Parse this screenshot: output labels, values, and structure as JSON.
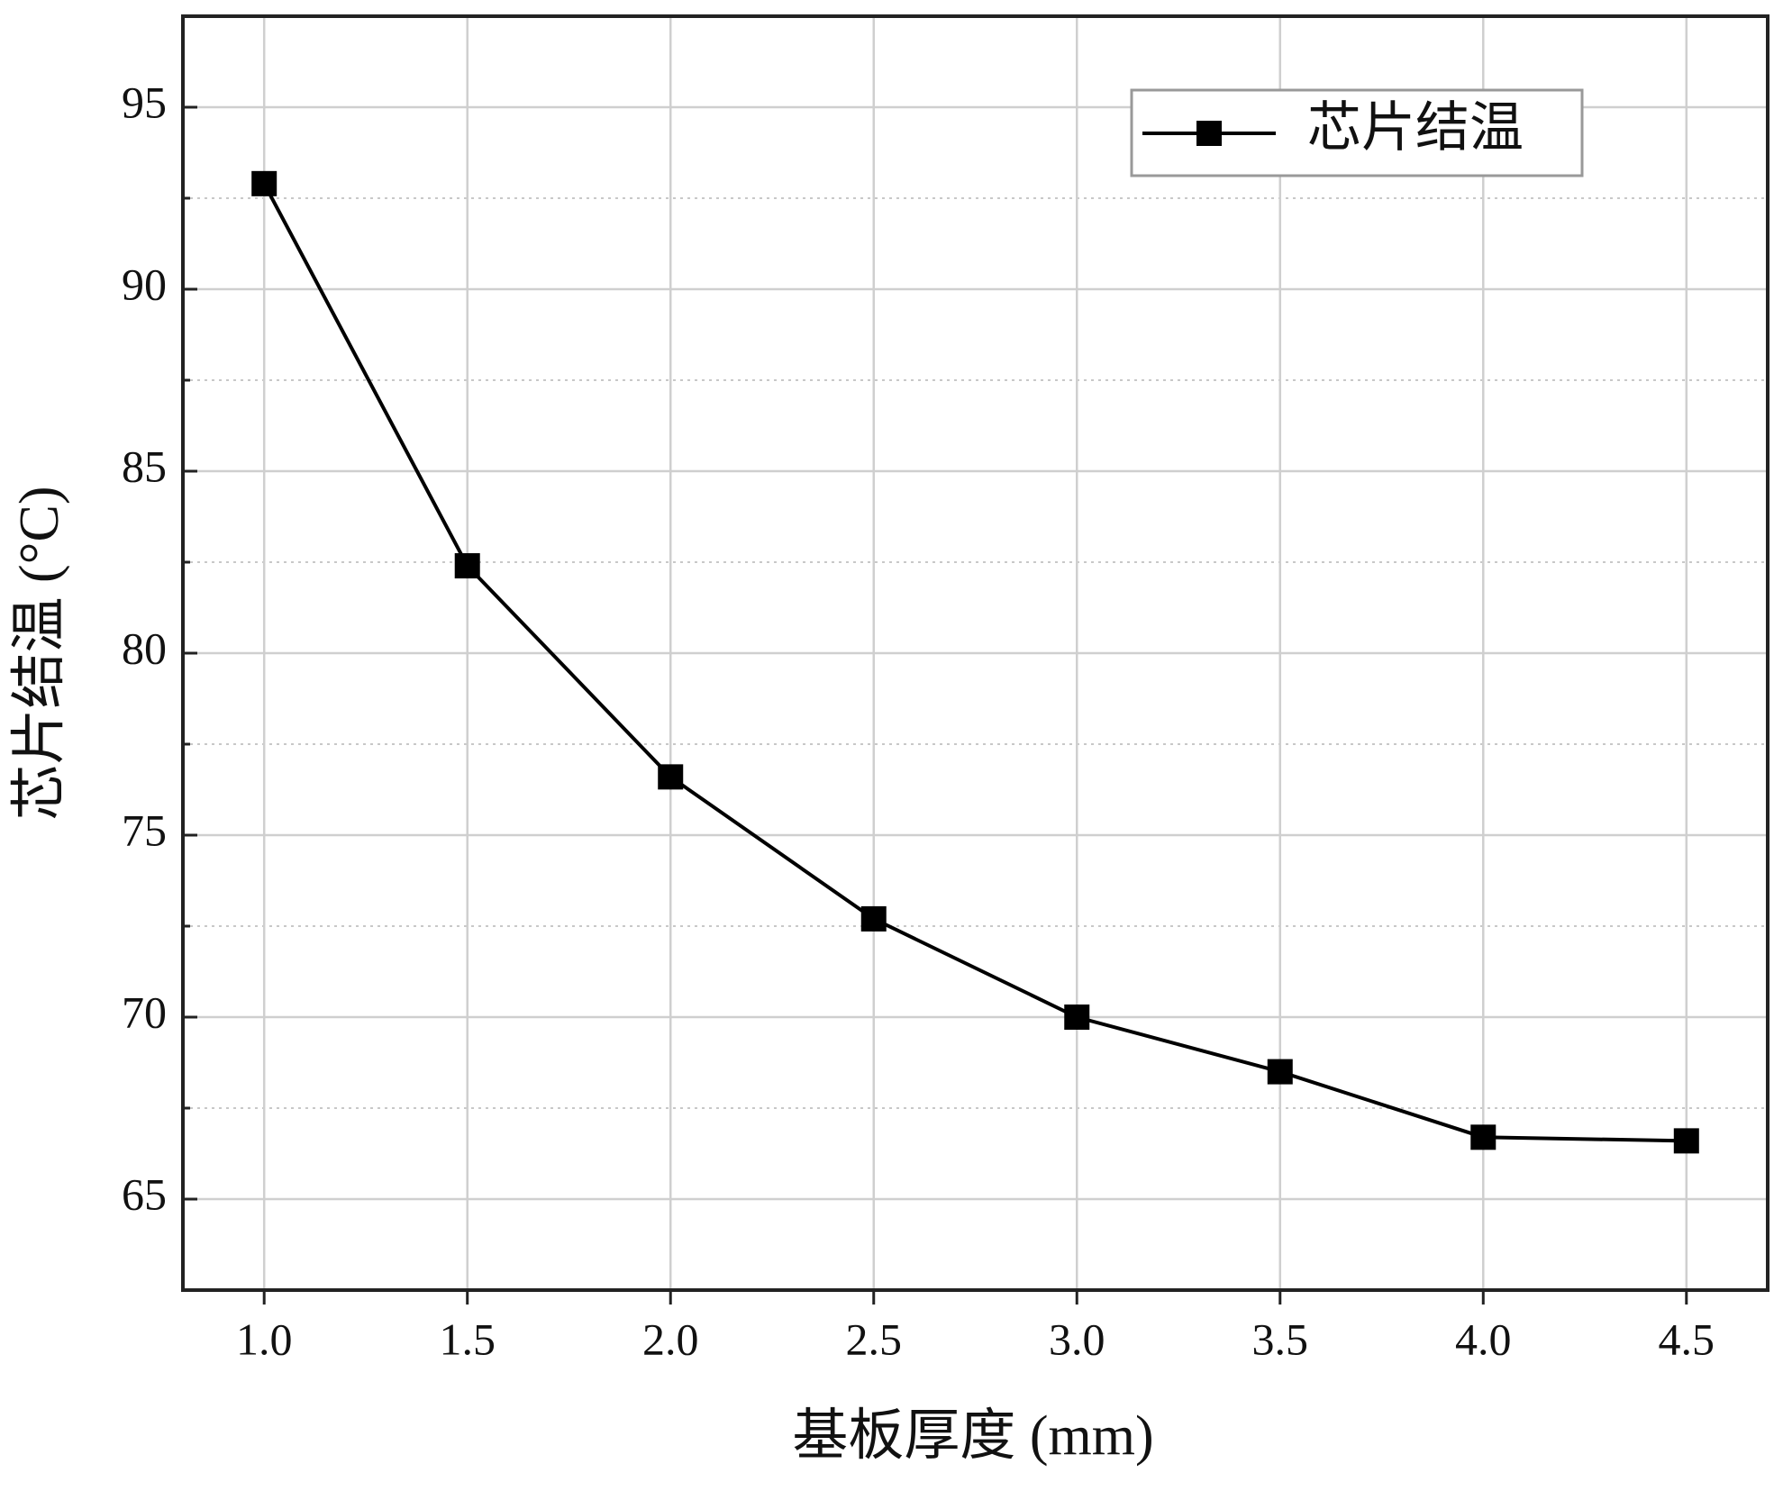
{
  "chart_data": {
    "type": "line",
    "x_label": "基板厚度 (mm)",
    "y_label": "芯片结温 (°C)",
    "x": [
      1.0,
      1.5,
      2.0,
      2.5,
      3.0,
      3.5,
      4.0,
      4.5
    ],
    "series": [
      {
        "name": "芯片结温",
        "color": "#000000",
        "values": [
          92.9,
          82.4,
          76.6,
          72.7,
          70.0,
          68.5,
          66.7,
          66.6
        ]
      }
    ],
    "xlim": [
      0.8,
      4.7
    ],
    "xticks": [
      {
        "value": 1,
        "label": "1.0"
      },
      {
        "value": 1.5,
        "label": "1.5"
      },
      {
        "value": 2,
        "label": "2.0"
      },
      {
        "value": 2.5,
        "label": "2.5"
      },
      {
        "value": 3,
        "label": "3.0"
      },
      {
        "value": 3.5,
        "label": "3.5"
      },
      {
        "value": 4,
        "label": "4.0"
      },
      {
        "value": 4.5,
        "label": "4.5"
      }
    ],
    "ylim": [
      62.5,
      97.5
    ],
    "yticks": [
      65,
      70,
      75,
      80,
      85,
      90,
      95
    ],
    "yminorticks": [
      67.5,
      72.5,
      77.5,
      82.5,
      87.5,
      92.5
    ],
    "grid": true,
    "legend": "upper right",
    "marker": "square"
  }
}
